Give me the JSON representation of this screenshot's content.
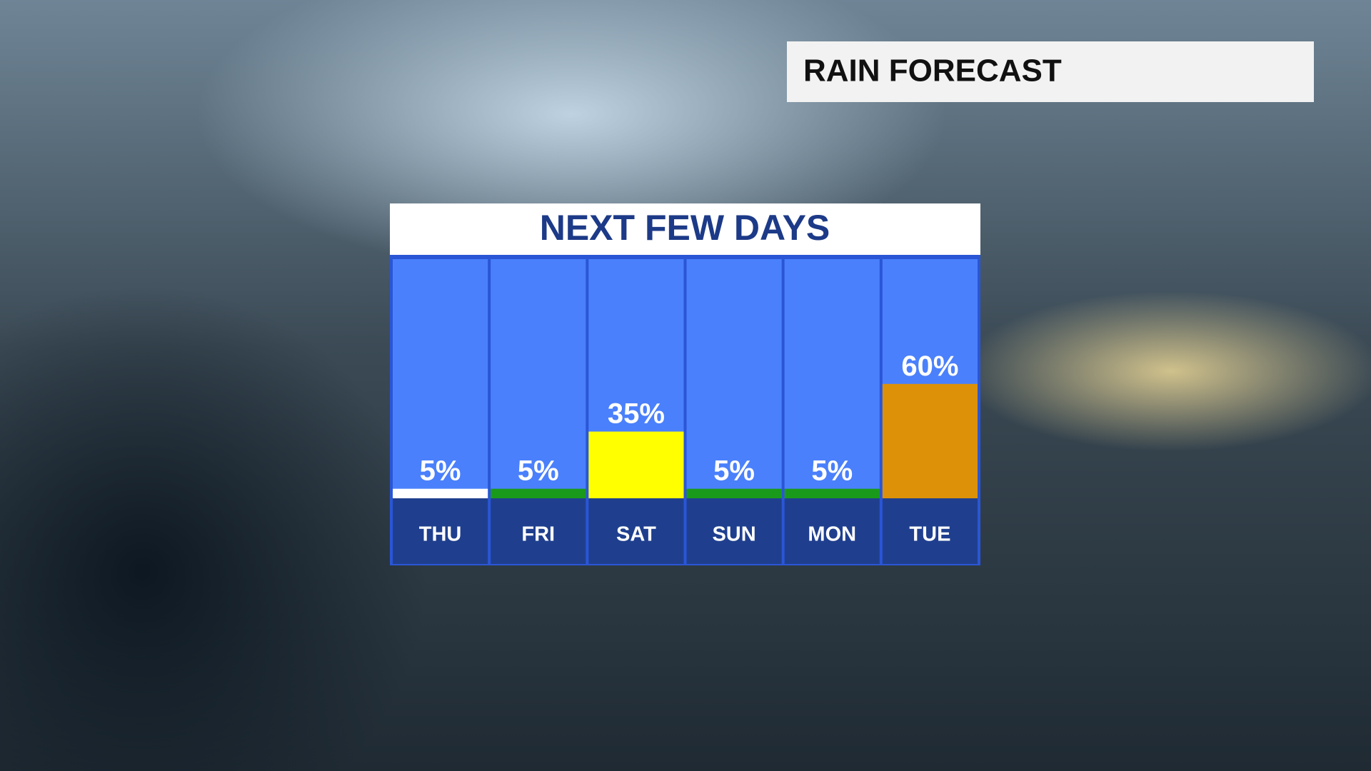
{
  "header": {
    "title": "RAIN FORECAST"
  },
  "chart_data": {
    "type": "bar",
    "title": "NEXT FEW DAYS",
    "categories": [
      "THU",
      "FRI",
      "SAT",
      "SUN",
      "MON",
      "TUE"
    ],
    "values": [
      5,
      5,
      35,
      5,
      5,
      60
    ],
    "value_labels": [
      "5%",
      "5%",
      "35%",
      "5%",
      "5%",
      "60%"
    ],
    "colors": [
      "#ffffff",
      "#1a9a1a",
      "#ffff00",
      "#1a9a1a",
      "#1a9a1a",
      "#dd9108"
    ]
  }
}
